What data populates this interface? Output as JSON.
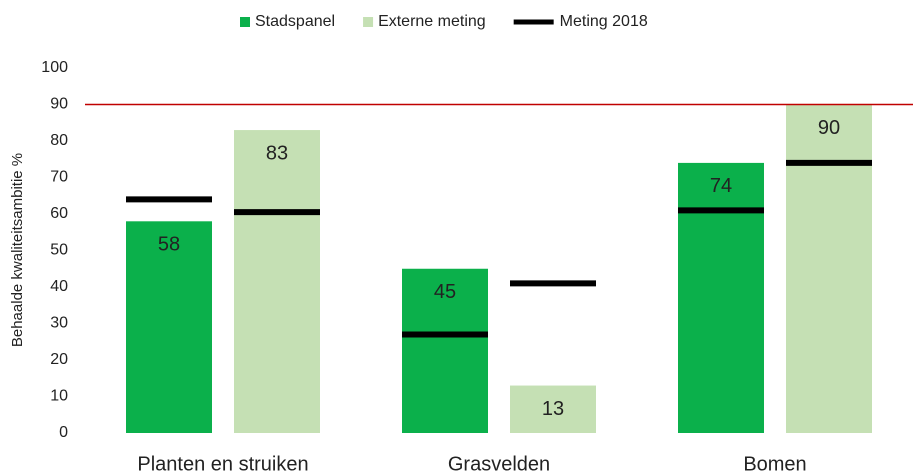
{
  "chart_data": {
    "type": "bar",
    "y_label": "Behaalde kwaliteitsambitie %",
    "categories": [
      "Planten en struiken",
      "Grasvelden",
      "Bomen"
    ],
    "series": [
      {
        "name": "Stadspanel",
        "color": "#0bb04b",
        "values": [
          58,
          45,
          74
        ]
      },
      {
        "name": "Externe meting",
        "color": "#c5e0b4",
        "values": [
          83,
          13,
          90
        ]
      }
    ],
    "markers": {
      "name": "Meting 2018",
      "color": "#000000",
      "values": [
        [
          64,
          60.5
        ],
        [
          27,
          41
        ],
        [
          61,
          74
        ]
      ]
    },
    "reference_line": {
      "value": 90,
      "color": "#c00000"
    },
    "ylim": [
      0,
      100
    ],
    "yticks": [
      0,
      10,
      20,
      30,
      40,
      50,
      60,
      70,
      80,
      90,
      100
    ],
    "grid": false
  }
}
